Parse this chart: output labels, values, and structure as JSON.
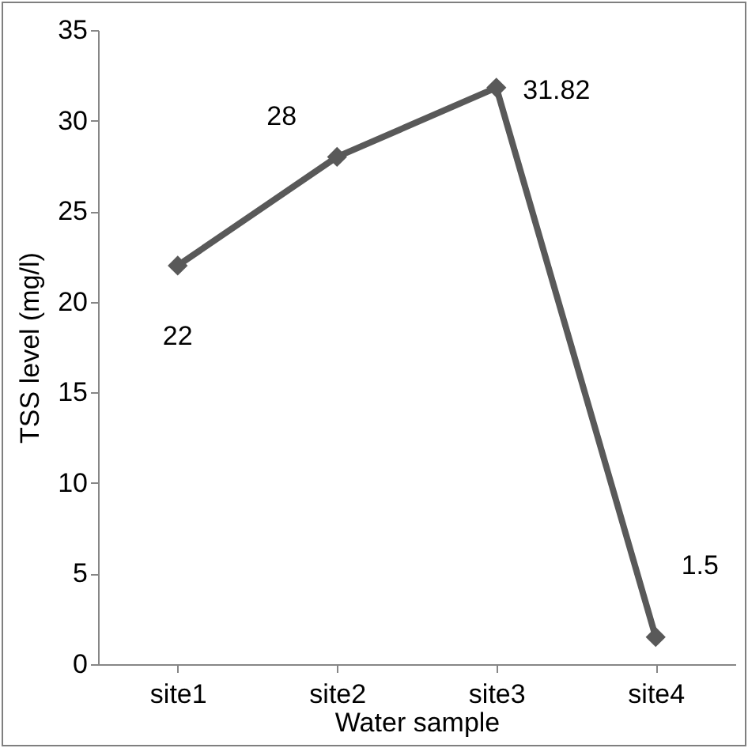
{
  "chart_data": {
    "type": "line",
    "xlabel": "Water sample",
    "ylabel": "TSS level (mg/l)",
    "categories": [
      "site1",
      "site2",
      "site3",
      "site4"
    ],
    "series": [
      {
        "color": "#595959",
        "values": [
          22,
          28,
          31.82,
          1.5
        ]
      }
    ],
    "ylim": [
      0,
      35
    ],
    "yticks": [
      0,
      5,
      10,
      15,
      20,
      25,
      30,
      35
    ],
    "marker": "diamond",
    "line_style": "solid",
    "data_labels": true
  }
}
